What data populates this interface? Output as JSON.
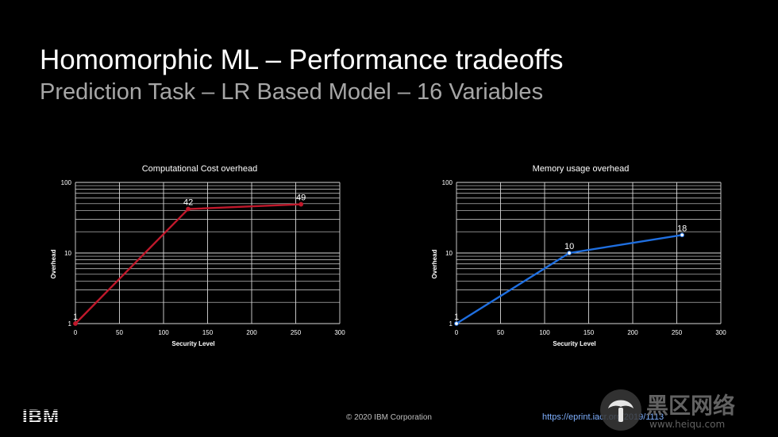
{
  "slide": {
    "title": "Homomorphic ML – Performance tradeoffs",
    "subtitle": "Prediction Task – LR Based Model – 16 Variables"
  },
  "footer": {
    "copyright": "© 2020 IBM Corporation",
    "link": "https://eprint.iacr.org/2019/1113",
    "logo_text": "IBM",
    "watermark_text": "黑区网络 www.heiqu.com"
  },
  "colors": {
    "background": "#000000",
    "series_cost": "#c0182b",
    "series_memory": "#1f6fe0",
    "grid": "#d9d9d9"
  },
  "chart_data": [
    {
      "type": "line",
      "title": "Computational Cost overhead",
      "xlabel": "Security Level",
      "ylabel": "Overhead",
      "x": [
        0,
        128,
        256
      ],
      "series": [
        {
          "values": [
            1,
            42,
            49
          ],
          "color": "#c0182b"
        }
      ],
      "data_labels": [
        "1",
        "42",
        "49"
      ],
      "xlim": [
        0,
        300
      ],
      "ylim": [
        1,
        100
      ],
      "y_scale": "log",
      "x_ticks": [
        "0",
        "50",
        "100",
        "150",
        "200",
        "250",
        "300"
      ],
      "y_ticks": [
        "1",
        "10",
        "100"
      ],
      "grid": true,
      "legend": "none"
    },
    {
      "type": "line",
      "title": "Memory usage overhead",
      "xlabel": "Security Level",
      "ylabel": "Overhead",
      "x": [
        0,
        128,
        256
      ],
      "series": [
        {
          "values": [
            1,
            10,
            18
          ],
          "color": "#1f6fe0"
        }
      ],
      "data_labels": [
        "1",
        "10",
        "18"
      ],
      "xlim": [
        0,
        300
      ],
      "ylim": [
        1,
        100
      ],
      "y_scale": "log",
      "x_ticks": [
        "0",
        "50",
        "100",
        "150",
        "200",
        "250",
        "300"
      ],
      "y_ticks": [
        "1",
        "10",
        "100"
      ],
      "grid": true,
      "legend": "none"
    }
  ]
}
